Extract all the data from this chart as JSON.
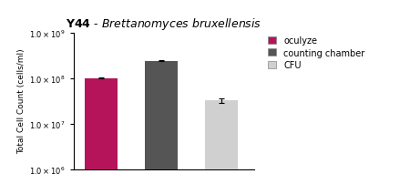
{
  "title_normal": "Y44 - ",
  "title_italic": "Brettanomyces bruxellensis",
  "ylabel": "Total Cell Count (cells/ml)",
  "categories": [
    "oculyze",
    "counting chamber",
    "CFU"
  ],
  "values": [
    100000000.0,
    240000000.0,
    32000000.0
  ],
  "errors": [
    2000000.0,
    6000000.0,
    3500000.0
  ],
  "bar_colors": [
    "#B5145B",
    "#555555",
    "#D0D0D0"
  ],
  "legend_labels": [
    "oculyze",
    "counting chamber",
    "CFU"
  ],
  "legend_colors": [
    "#B5145B",
    "#555555",
    "#D0D0D0"
  ],
  "ylim_log": [
    1000000.0,
    1000000000.0
  ],
  "yticks": [
    1000000.0,
    10000000.0,
    100000000.0,
    1000000000.0
  ],
  "background_color": "#ffffff",
  "bar_width": 0.55,
  "bar_positions": [
    1,
    2,
    3
  ]
}
